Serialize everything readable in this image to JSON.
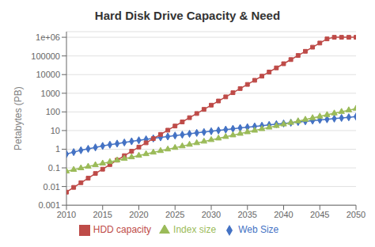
{
  "chart_data": {
    "type": "line",
    "title": "Hard Disk Drive Capacity & Need",
    "y_label": "Petabytes (PB)",
    "log": "y",
    "grid": true,
    "legend": "bottom",
    "xlim": [
      2010,
      2050
    ],
    "xticks": [
      2010,
      2015,
      2020,
      2025,
      2030,
      2035,
      2040,
      2045,
      2050
    ],
    "ylim": [
      0.001,
      2000000
    ],
    "yticks": [
      0.001,
      0.01,
      0.1,
      1,
      10,
      100,
      1000,
      10000,
      100000,
      {
        "value": 1000000,
        "label": "1e+06"
      }
    ],
    "x": [
      2010,
      2011,
      2012,
      2013,
      2014,
      2015,
      2016,
      2017,
      2018,
      2019,
      2020,
      2021,
      2022,
      2023,
      2024,
      2025,
      2026,
      2027,
      2028,
      2029,
      2030,
      2031,
      2032,
      2033,
      2034,
      2035,
      2036,
      2037,
      2038,
      2039,
      2040,
      2041,
      2042,
      2043,
      2044,
      2045,
      2046,
      2047,
      2048,
      2049,
      2050
    ],
    "series": [
      {
        "name": "Web Size",
        "color": "#4472C4",
        "marker": "diamond",
        "values": [
          0.55,
          0.7,
          0.88,
          1.05,
          1.25,
          1.5,
          1.75,
          2.0,
          2.3,
          2.65,
          3.0,
          3.4,
          3.8,
          4.3,
          4.8,
          5.4,
          6.0,
          6.7,
          7.5,
          8.3,
          9.2,
          10.2,
          11.3,
          12.5,
          13.8,
          15.2,
          16.7,
          18.3,
          20.1,
          22.0,
          24.0,
          26.2,
          28.6,
          31.2,
          34.0,
          37.0,
          40.2,
          43.7,
          47.5,
          51.5,
          55.8
        ]
      },
      {
        "name": "HDD capacity",
        "color": "#BE4B48",
        "marker": "square",
        "values": [
          0.005,
          0.009,
          0.016,
          0.028,
          0.05,
          0.085,
          0.15,
          0.26,
          0.45,
          0.78,
          1.3,
          2.2,
          3.7,
          6.2,
          10.5,
          17.5,
          29.0,
          49.0,
          82.0,
          137.0,
          230.0,
          385.0,
          640.0,
          1070.0,
          1780.0,
          2970.0,
          4950.0,
          8250.0,
          13750.0,
          22900.0,
          38200.0,
          63700.0,
          106000.0,
          177000.0,
          295000.0,
          492000.0,
          820000.0,
          1000000.0,
          1000000.0,
          1000000.0,
          1000000.0
        ]
      },
      {
        "name": "Index size",
        "color": "#9BBB59",
        "marker": "triangle",
        "values": [
          0.065,
          0.08,
          0.097,
          0.118,
          0.143,
          0.174,
          0.21,
          0.256,
          0.31,
          0.376,
          0.457,
          0.555,
          0.673,
          0.817,
          0.992,
          1.2,
          1.46,
          1.77,
          2.15,
          2.6,
          3.16,
          3.83,
          4.65,
          5.64,
          6.84,
          8.3,
          10.07,
          12.21,
          14.82,
          17.97,
          21.81,
          26.45,
          32.09,
          38.93,
          47.23,
          57.3,
          69.5,
          84.3,
          102.2,
          124.0,
          150.5
        ]
      }
    ]
  }
}
